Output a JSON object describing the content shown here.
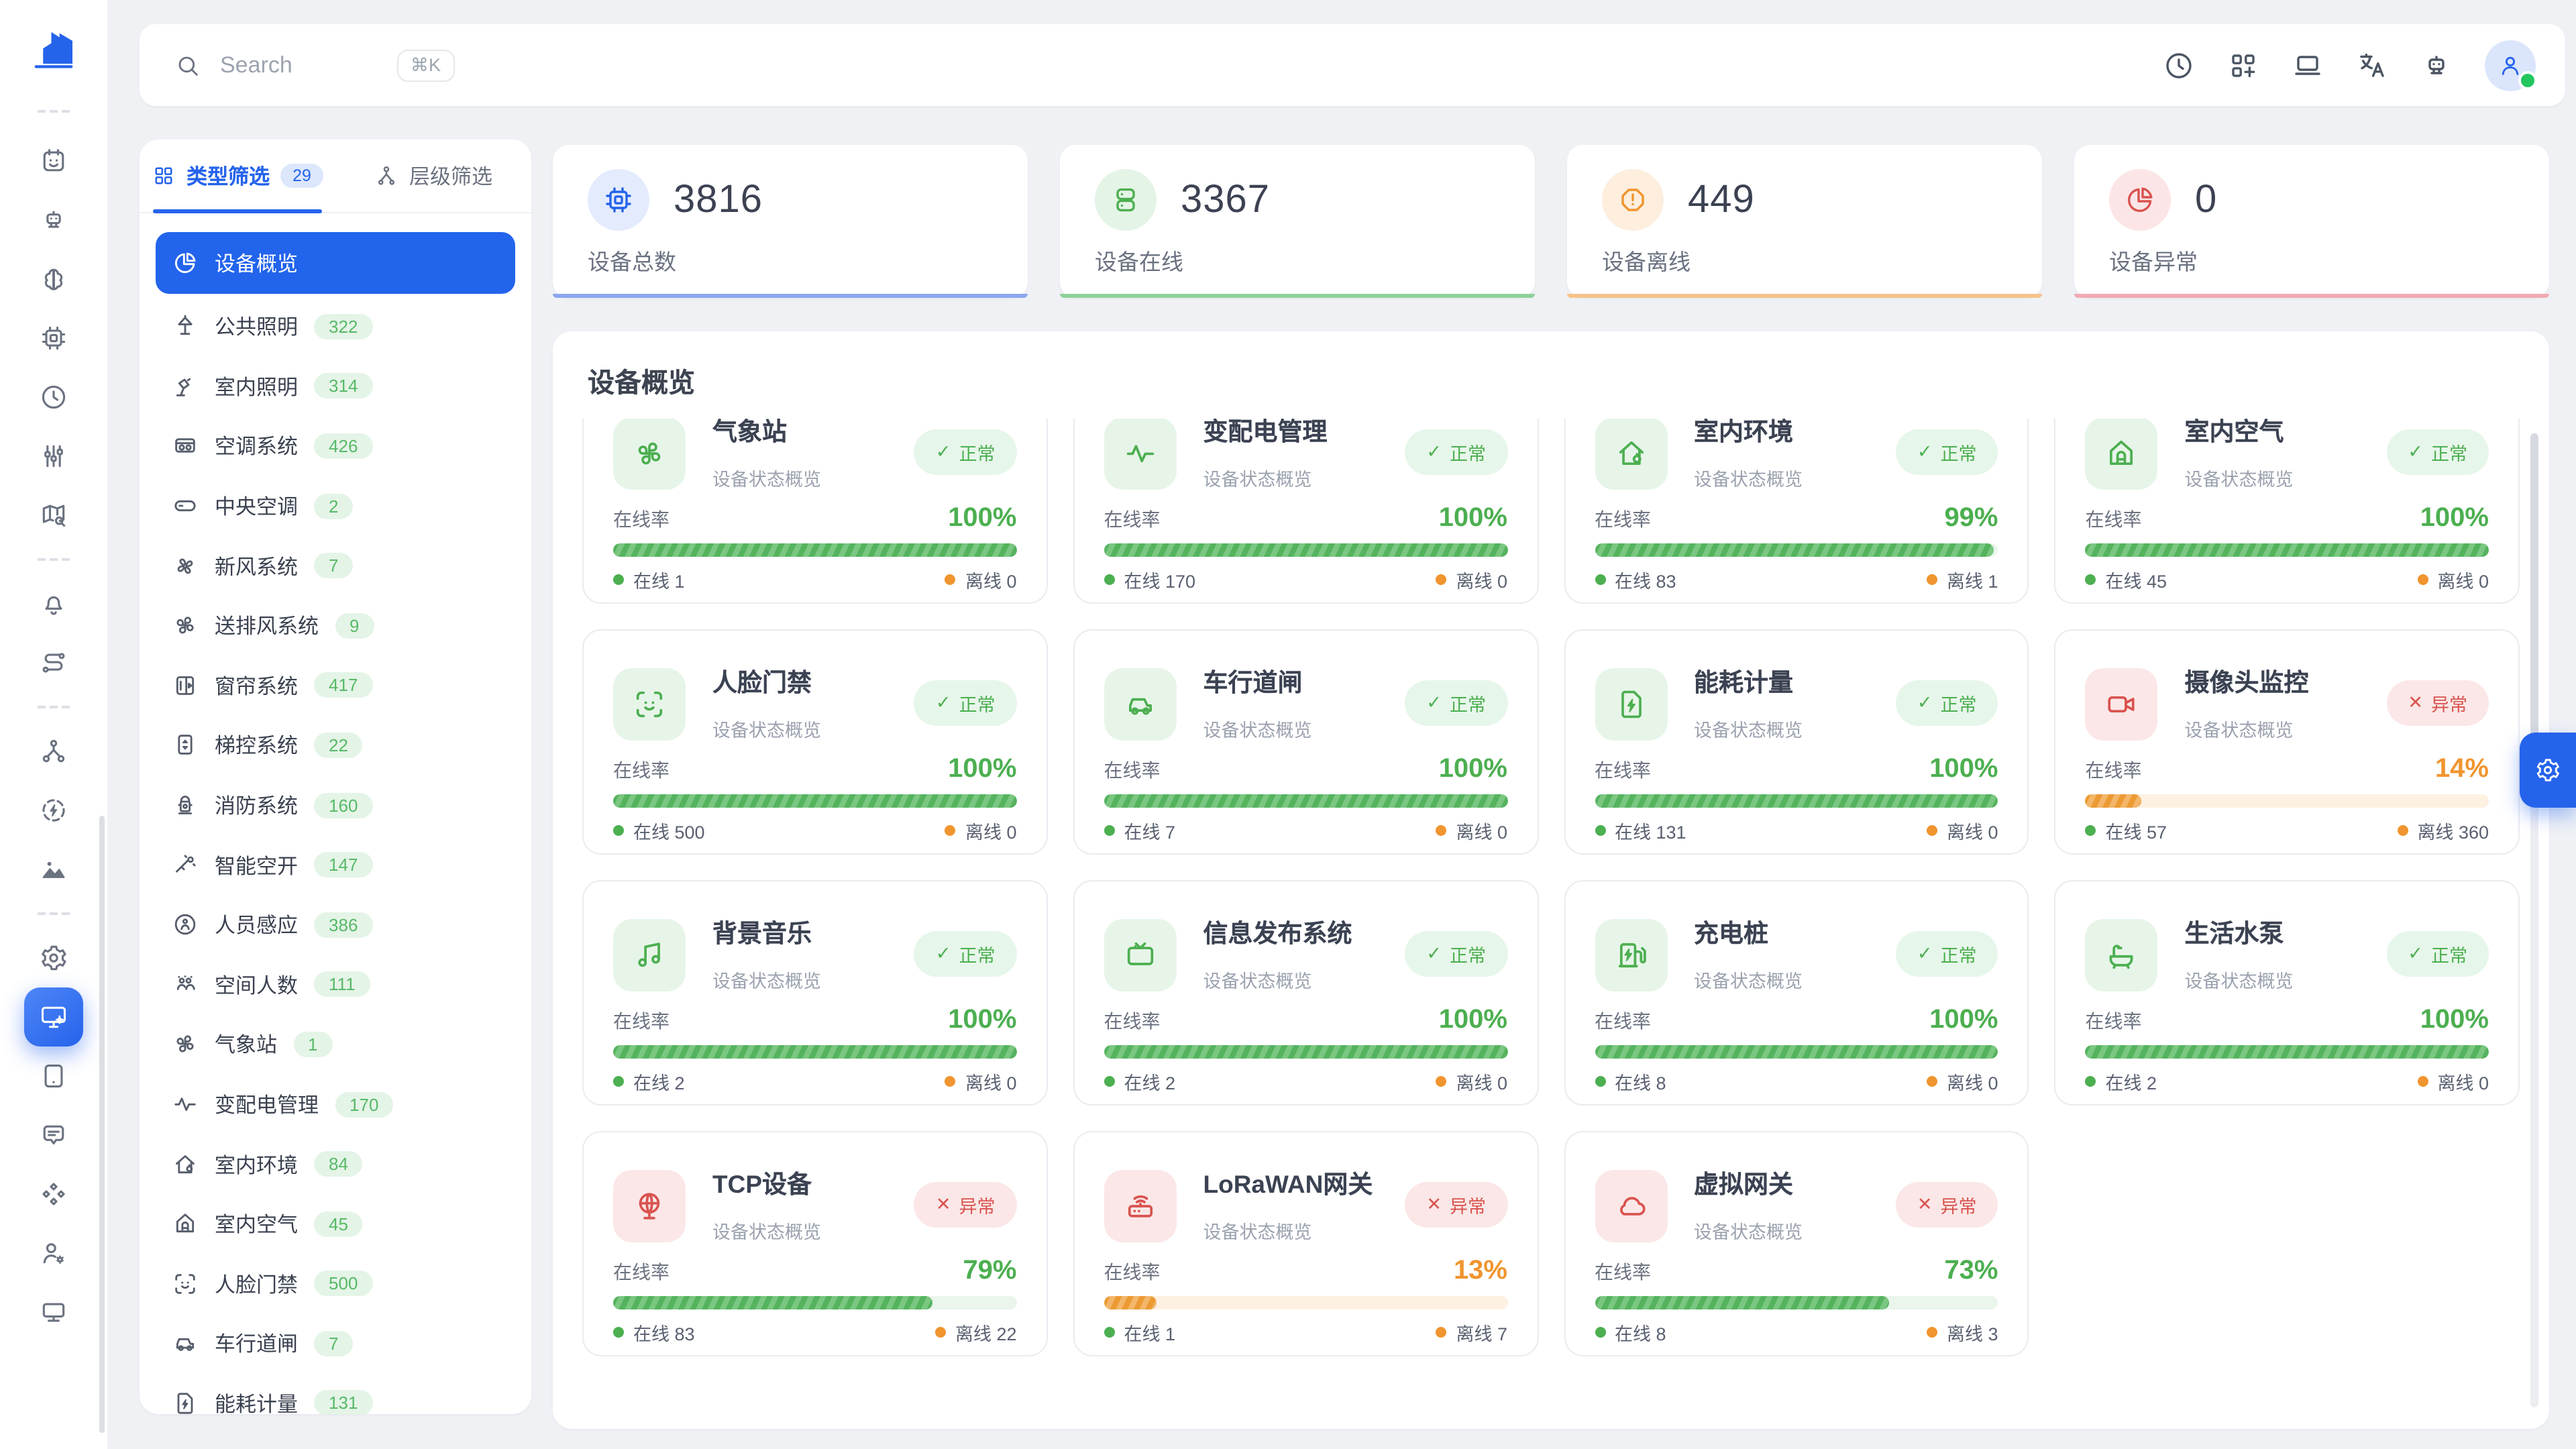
{
  "colors": {
    "primary": "#2563eb",
    "green": "#4caf50",
    "orange": "#f0952f",
    "red": "#d9534f"
  },
  "topbar": {
    "search_placeholder": "Search",
    "search_shortcut": "⌘K",
    "action_icons": [
      "history-icon",
      "apps-grid-plus-icon",
      "laptop-icon",
      "translate-icon",
      "robot-icon"
    ],
    "avatar": {
      "status": "online"
    }
  },
  "rail": {
    "logo_icon": "building-logo",
    "groups": [
      {
        "items": [
          {
            "icon": "calendar-face"
          },
          {
            "icon": "robot"
          },
          {
            "icon": "brain"
          },
          {
            "icon": "cpu"
          },
          {
            "icon": "clock"
          },
          {
            "icon": "sliders"
          },
          {
            "icon": "map-search"
          }
        ]
      },
      {
        "items": [
          {
            "icon": "bell"
          },
          {
            "icon": "route"
          }
        ]
      },
      {
        "items": [
          {
            "icon": "hierarchy"
          },
          {
            "icon": "energy"
          },
          {
            "icon": "image"
          }
        ]
      },
      {
        "items": [
          {
            "icon": "gear"
          },
          {
            "icon": "monitor-gear",
            "active": true
          },
          {
            "icon": "tablet"
          },
          {
            "icon": "chat"
          },
          {
            "icon": "diamonds"
          },
          {
            "icon": "user-gear"
          },
          {
            "icon": "monitor"
          }
        ]
      }
    ]
  },
  "filter_panel": {
    "tabs": [
      {
        "label": "类型筛选",
        "count": "29",
        "icon": "grid",
        "active": true
      },
      {
        "label": "层级筛选",
        "icon": "hier-person",
        "active": false
      }
    ],
    "items": [
      {
        "label": "设备概览",
        "icon": "pie",
        "active": true
      },
      {
        "label": "公共照明",
        "count": "322",
        "icon": "lamp-street"
      },
      {
        "label": "室内照明",
        "count": "314",
        "icon": "lamp-desk"
      },
      {
        "label": "空调系统",
        "count": "426",
        "icon": "ac"
      },
      {
        "label": "中央空调",
        "count": "2",
        "icon": "ac-central"
      },
      {
        "label": "新风系统",
        "count": "7",
        "icon": "fan"
      },
      {
        "label": "送排风系统",
        "count": "9",
        "icon": "pinwheel"
      },
      {
        "label": "窗帘系统",
        "count": "417",
        "icon": "curtain"
      },
      {
        "label": "梯控系统",
        "count": "22",
        "icon": "elevator"
      },
      {
        "label": "消防系统",
        "count": "160",
        "icon": "hydrant"
      },
      {
        "label": "智能空开",
        "count": "147",
        "icon": "breaker"
      },
      {
        "label": "人员感应",
        "count": "386",
        "icon": "person-sense"
      },
      {
        "label": "空间人数",
        "count": "111",
        "icon": "people"
      },
      {
        "label": "气象站",
        "count": "1",
        "icon": "pinwheel"
      },
      {
        "label": "变配电管理",
        "count": "170",
        "icon": "pulse"
      },
      {
        "label": "室内环境",
        "count": "84",
        "icon": "house-leaf"
      },
      {
        "label": "室内空气",
        "count": "45",
        "icon": "house-air"
      },
      {
        "label": "人脸门禁",
        "count": "500",
        "icon": "face-scan"
      },
      {
        "label": "车行道闸",
        "count": "7",
        "icon": "car"
      },
      {
        "label": "能耗计量",
        "count": "131",
        "icon": "doc-bolt"
      }
    ]
  },
  "stats": [
    {
      "value": "3816",
      "label": "设备总数",
      "icon": "cpu",
      "color": "#2563eb",
      "bg": "#e3ebfd",
      "accent": "#8da6f0"
    },
    {
      "value": "3367",
      "label": "设备在线",
      "icon": "server",
      "color": "#4caf50",
      "bg": "#e4f4e6",
      "accent": "#8fd19a"
    },
    {
      "value": "449",
      "label": "设备离线",
      "icon": "alert-octagon",
      "color": "#f0952f",
      "bg": "#fdeede",
      "accent": "#f5c389"
    },
    {
      "value": "0",
      "label": "设备异常",
      "icon": "pie-alert",
      "color": "#d9534f",
      "bg": "#fce5e7",
      "accent": "#f2a9b4"
    }
  ],
  "overview": {
    "title": "设备概览",
    "labels": {
      "rate": "在线率",
      "online": "在线",
      "offline": "离线",
      "ok_mark": "✓",
      "bad_mark": "✕"
    },
    "cards": [
      {
        "title": "气象站",
        "subtitle": "设备状态概览",
        "status": "正常",
        "ok": true,
        "rate": 100,
        "rate_text": "100%",
        "bar": "green",
        "online": "1",
        "offline": "0",
        "icon": "pinwheel"
      },
      {
        "title": "变配电管理",
        "subtitle": "设备状态概览",
        "status": "正常",
        "ok": true,
        "rate": 100,
        "rate_text": "100%",
        "bar": "green",
        "online": "170",
        "offline": "0",
        "icon": "pulse"
      },
      {
        "title": "室内环境",
        "subtitle": "设备状态概览",
        "status": "正常",
        "ok": true,
        "rate": 99,
        "rate_text": "99%",
        "bar": "green",
        "online": "83",
        "offline": "1",
        "icon": "house-leaf"
      },
      {
        "title": "室内空气",
        "subtitle": "设备状态概览",
        "status": "正常",
        "ok": true,
        "rate": 100,
        "rate_text": "100%",
        "bar": "green",
        "online": "45",
        "offline": "0",
        "icon": "house-air"
      },
      {
        "title": "人脸门禁",
        "subtitle": "设备状态概览",
        "status": "正常",
        "ok": true,
        "rate": 100,
        "rate_text": "100%",
        "bar": "green",
        "online": "500",
        "offline": "0",
        "icon": "face-scan"
      },
      {
        "title": "车行道闸",
        "subtitle": "设备状态概览",
        "status": "正常",
        "ok": true,
        "rate": 100,
        "rate_text": "100%",
        "bar": "green",
        "online": "7",
        "offline": "0",
        "icon": "car"
      },
      {
        "title": "能耗计量",
        "subtitle": "设备状态概览",
        "status": "正常",
        "ok": true,
        "rate": 100,
        "rate_text": "100%",
        "bar": "green",
        "online": "131",
        "offline": "0",
        "icon": "doc-bolt"
      },
      {
        "title": "摄像头监控",
        "subtitle": "设备状态概览",
        "status": "异常",
        "ok": false,
        "rate": 14,
        "rate_text": "14%",
        "bar": "orange",
        "online": "57",
        "offline": "360",
        "icon": "camera"
      },
      {
        "title": "背景音乐",
        "subtitle": "设备状态概览",
        "status": "正常",
        "ok": true,
        "rate": 100,
        "rate_text": "100%",
        "bar": "green",
        "online": "2",
        "offline": "0",
        "icon": "music"
      },
      {
        "title": "信息发布系统",
        "subtitle": "设备状态概览",
        "status": "正常",
        "ok": true,
        "rate": 100,
        "rate_text": "100%",
        "bar": "green",
        "online": "2",
        "offline": "0",
        "icon": "tv"
      },
      {
        "title": "充电桩",
        "subtitle": "设备状态概览",
        "status": "正常",
        "ok": true,
        "rate": 100,
        "rate_text": "100%",
        "bar": "green",
        "online": "8",
        "offline": "0",
        "icon": "ev-charger"
      },
      {
        "title": "生活水泵",
        "subtitle": "设备状态概览",
        "status": "正常",
        "ok": true,
        "rate": 100,
        "rate_text": "100%",
        "bar": "green",
        "online": "2",
        "offline": "0",
        "icon": "bath"
      },
      {
        "title": "TCP设备",
        "subtitle": "设备状态概览",
        "status": "异常",
        "ok": false,
        "rate": 79,
        "rate_text": "79%",
        "bar": "green",
        "online": "83",
        "offline": "22",
        "icon": "globe"
      },
      {
        "title": "LoRaWAN网关",
        "subtitle": "设备状态概览",
        "status": "异常",
        "ok": false,
        "rate": 13,
        "rate_text": "13%",
        "bar": "orange",
        "online": "1",
        "offline": "7",
        "icon": "router"
      },
      {
        "title": "虚拟网关",
        "subtitle": "设备状态概览",
        "status": "异常",
        "ok": false,
        "rate": 73,
        "rate_text": "73%",
        "bar": "green",
        "online": "8",
        "offline": "3",
        "icon": "cloud"
      }
    ]
  },
  "floating": {
    "icon": "gear"
  }
}
